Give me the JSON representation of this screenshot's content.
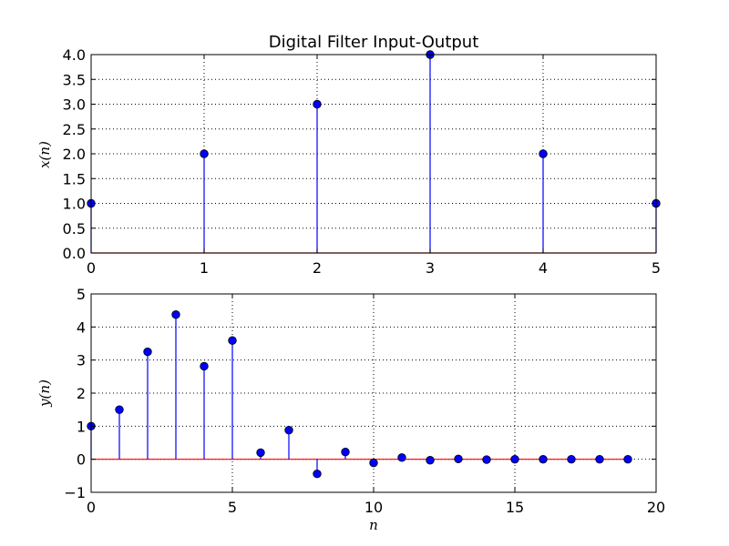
{
  "chart_data": [
    {
      "type": "stem",
      "title": "Digital Filter Input-Output",
      "xlabel": "",
      "ylabel": "x(n)",
      "xlim": [
        0,
        5
      ],
      "ylim": [
        0,
        4
      ],
      "xticks": [
        "0",
        "1",
        "2",
        "3",
        "4",
        "5"
      ],
      "yticks": [
        "0.0",
        "0.5",
        "1.0",
        "1.5",
        "2.0",
        "2.5",
        "3.0",
        "3.5",
        "4.0"
      ],
      "grid": true,
      "series": [
        {
          "x": [
            0,
            1,
            2,
            3,
            4,
            5
          ],
          "values": [
            1,
            2,
            3,
            4,
            2,
            1
          ]
        }
      ],
      "colors": {
        "marker": "#0000ff",
        "stem": "#0000ff",
        "baseline": "#ff0000"
      }
    },
    {
      "type": "stem",
      "title": "",
      "xlabel": "n",
      "ylabel": "y(n)",
      "xlim": [
        0,
        20
      ],
      "ylim": [
        -1,
        5
      ],
      "xticks": [
        "0",
        "5",
        "10",
        "15",
        "20"
      ],
      "yticks": [
        "−1",
        "0",
        "1",
        "2",
        "3",
        "4",
        "5"
      ],
      "grid": true,
      "series": [
        {
          "x": [
            0,
            1,
            2,
            3,
            4,
            5,
            6,
            7,
            8,
            9,
            10,
            11,
            12,
            13,
            14,
            15,
            16,
            17,
            18,
            19
          ],
          "values": [
            1.0,
            1.5,
            3.25,
            4.375,
            2.8125,
            3.59,
            0.2,
            0.88,
            -0.44,
            0.22,
            -0.11,
            0.05,
            -0.03,
            0.01,
            -0.01,
            0.0,
            0.0,
            0.0,
            0.0,
            0.0
          ]
        }
      ],
      "colors": {
        "marker": "#0000ff",
        "stem": "#0000ff",
        "baseline": "#ff0000"
      }
    }
  ]
}
